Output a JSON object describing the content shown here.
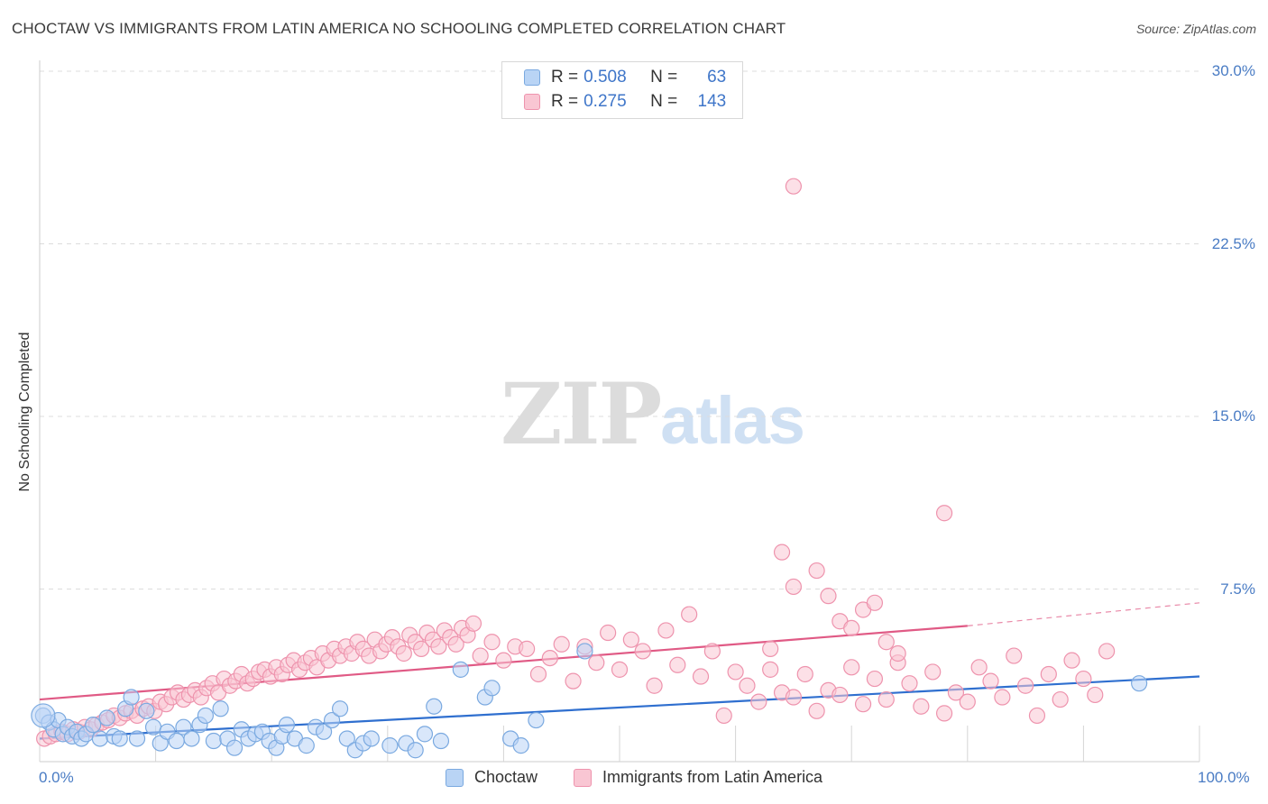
{
  "header": {
    "title": "CHOCTAW VS IMMIGRANTS FROM LATIN AMERICA NO SCHOOLING COMPLETED CORRELATION CHART",
    "source": "Source: ZipAtlas.com"
  },
  "watermark": {
    "zip": "ZIP",
    "atlas": "atlas"
  },
  "legend": {
    "rows": [
      {
        "r_label": "R =",
        "r_value": "0.508",
        "n_label": "N =",
        "n_value": "63",
        "swatch_fill": "#b9d4f5",
        "swatch_border": "#7aa9e0"
      },
      {
        "r_label": "R =",
        "r_value": "0.275",
        "n_label": "N =",
        "n_value": "143",
        "swatch_fill": "#f9c6d3",
        "swatch_border": "#ee93ad"
      }
    ]
  },
  "bottom_legend": {
    "items": [
      {
        "label": "Choctaw",
        "fill": "#b9d4f5",
        "border": "#7aa9e0"
      },
      {
        "label": "Immigrants from Latin America",
        "fill": "#f9c6d3",
        "border": "#ee93ad"
      }
    ]
  },
  "chart_data": {
    "type": "scatter",
    "title": "CHOCTAW VS IMMIGRANTS FROM LATIN AMERICA NO SCHOOLING COMPLETED CORRELATION CHART",
    "xlabel": "",
    "ylabel": "No Schooling Completed",
    "xlim": [
      0,
      100
    ],
    "ylim": [
      0,
      30
    ],
    "x_tick_labels": [
      "0.0%",
      "100.0%"
    ],
    "y_ticks": [
      7.5,
      15.0,
      22.5,
      30.0
    ],
    "y_tick_labels": [
      "7.5%",
      "15.0%",
      "22.5%",
      "30.0%"
    ],
    "grid": true,
    "legend_position": "top-center",
    "series": [
      {
        "name": "Choctaw",
        "color": "#7aa9e0",
        "fill": "#b9d4f5",
        "line_color": "#2f6fcf",
        "trend": {
          "x": [
            0,
            100
          ],
          "y": [
            1.0,
            3.7
          ]
        },
        "points": [
          [
            0.3,
            2.0
          ],
          [
            0.8,
            1.7
          ],
          [
            1.2,
            1.4
          ],
          [
            1.6,
            1.8
          ],
          [
            2.0,
            1.2
          ],
          [
            2.4,
            1.5
          ],
          [
            2.8,
            1.1
          ],
          [
            3.2,
            1.3
          ],
          [
            3.6,
            1.0
          ],
          [
            4.0,
            1.2
          ],
          [
            4.6,
            1.6
          ],
          [
            5.2,
            1.0
          ],
          [
            5.8,
            1.9
          ],
          [
            6.4,
            1.1
          ],
          [
            6.9,
            1.0
          ],
          [
            7.4,
            2.3
          ],
          [
            7.9,
            2.8
          ],
          [
            8.4,
            1.0
          ],
          [
            9.2,
            2.2
          ],
          [
            9.8,
            1.5
          ],
          [
            10.4,
            0.8
          ],
          [
            11.0,
            1.3
          ],
          [
            11.8,
            0.9
          ],
          [
            12.4,
            1.5
          ],
          [
            13.1,
            1.0
          ],
          [
            13.8,
            1.6
          ],
          [
            14.3,
            2.0
          ],
          [
            15.0,
            0.9
          ],
          [
            15.6,
            2.3
          ],
          [
            16.2,
            1.0
          ],
          [
            16.8,
            0.6
          ],
          [
            17.4,
            1.4
          ],
          [
            18.0,
            1.0
          ],
          [
            18.6,
            1.2
          ],
          [
            19.2,
            1.3
          ],
          [
            19.8,
            0.9
          ],
          [
            20.4,
            0.6
          ],
          [
            20.9,
            1.1
          ],
          [
            21.3,
            1.6
          ],
          [
            22.0,
            1.0
          ],
          [
            23.0,
            0.7
          ],
          [
            23.8,
            1.5
          ],
          [
            24.5,
            1.3
          ],
          [
            25.2,
            1.8
          ],
          [
            25.9,
            2.3
          ],
          [
            26.5,
            1.0
          ],
          [
            27.2,
            0.5
          ],
          [
            27.9,
            0.8
          ],
          [
            28.6,
            1.0
          ],
          [
            30.2,
            0.7
          ],
          [
            31.6,
            0.8
          ],
          [
            32.4,
            0.5
          ],
          [
            33.2,
            1.2
          ],
          [
            34.0,
            2.4
          ],
          [
            34.6,
            0.9
          ],
          [
            36.3,
            4.0
          ],
          [
            38.4,
            2.8
          ],
          [
            39.0,
            3.2
          ],
          [
            40.6,
            1.0
          ],
          [
            41.5,
            0.7
          ],
          [
            42.8,
            1.8
          ],
          [
            47.0,
            4.8
          ],
          [
            94.8,
            3.4
          ]
        ]
      },
      {
        "name": "Immigrants from Latin America",
        "color": "#ee93ad",
        "fill": "#f9c6d3",
        "line_color": "#e05a85",
        "trend": {
          "x": [
            0,
            80
          ],
          "y": [
            2.7,
            5.9
          ]
        },
        "trend_extension": {
          "x": [
            80,
            100
          ],
          "y": [
            5.9,
            6.9
          ]
        },
        "points": [
          [
            0.4,
            1.0
          ],
          [
            0.9,
            1.1
          ],
          [
            1.4,
            1.2
          ],
          [
            1.9,
            1.3
          ],
          [
            2.4,
            1.2
          ],
          [
            2.9,
            1.4
          ],
          [
            3.4,
            1.3
          ],
          [
            3.9,
            1.5
          ],
          [
            4.4,
            1.4
          ],
          [
            4.9,
            1.6
          ],
          [
            5.4,
            1.7
          ],
          [
            5.9,
            1.8
          ],
          [
            6.4,
            2.0
          ],
          [
            6.9,
            1.9
          ],
          [
            7.4,
            2.1
          ],
          [
            7.9,
            2.2
          ],
          [
            8.4,
            2.0
          ],
          [
            8.9,
            2.3
          ],
          [
            9.4,
            2.4
          ],
          [
            9.9,
            2.2
          ],
          [
            10.4,
            2.6
          ],
          [
            10.9,
            2.5
          ],
          [
            11.4,
            2.8
          ],
          [
            11.9,
            3.0
          ],
          [
            12.4,
            2.7
          ],
          [
            12.9,
            2.9
          ],
          [
            13.4,
            3.1
          ],
          [
            13.9,
            2.8
          ],
          [
            14.4,
            3.2
          ],
          [
            14.9,
            3.4
          ],
          [
            15.4,
            3.0
          ],
          [
            15.9,
            3.6
          ],
          [
            16.4,
            3.3
          ],
          [
            16.9,
            3.5
          ],
          [
            17.4,
            3.8
          ],
          [
            17.9,
            3.4
          ],
          [
            18.4,
            3.6
          ],
          [
            18.9,
            3.9
          ],
          [
            19.4,
            4.0
          ],
          [
            19.9,
            3.7
          ],
          [
            20.4,
            4.1
          ],
          [
            20.9,
            3.8
          ],
          [
            21.4,
            4.2
          ],
          [
            21.9,
            4.4
          ],
          [
            22.4,
            4.0
          ],
          [
            22.9,
            4.3
          ],
          [
            23.4,
            4.5
          ],
          [
            23.9,
            4.1
          ],
          [
            24.4,
            4.7
          ],
          [
            24.9,
            4.4
          ],
          [
            25.4,
            4.9
          ],
          [
            25.9,
            4.6
          ],
          [
            26.4,
            5.0
          ],
          [
            26.9,
            4.7
          ],
          [
            27.4,
            5.2
          ],
          [
            27.9,
            4.9
          ],
          [
            28.4,
            4.6
          ],
          [
            28.9,
            5.3
          ],
          [
            29.4,
            4.8
          ],
          [
            29.9,
            5.1
          ],
          [
            30.4,
            5.4
          ],
          [
            30.9,
            5.0
          ],
          [
            31.4,
            4.7
          ],
          [
            31.9,
            5.5
          ],
          [
            32.4,
            5.2
          ],
          [
            32.9,
            4.9
          ],
          [
            33.4,
            5.6
          ],
          [
            33.9,
            5.3
          ],
          [
            34.4,
            5.0
          ],
          [
            34.9,
            5.7
          ],
          [
            35.4,
            5.4
          ],
          [
            35.9,
            5.1
          ],
          [
            36.4,
            5.8
          ],
          [
            36.9,
            5.5
          ],
          [
            37.4,
            6.0
          ],
          [
            38.0,
            4.6
          ],
          [
            39.0,
            5.2
          ],
          [
            40.0,
            4.4
          ],
          [
            41.0,
            5.0
          ],
          [
            42.0,
            4.9
          ],
          [
            43.0,
            3.8
          ],
          [
            44.0,
            4.5
          ],
          [
            45.0,
            5.1
          ],
          [
            46.0,
            3.5
          ],
          [
            47.0,
            5.0
          ],
          [
            48.0,
            4.3
          ],
          [
            49.0,
            5.6
          ],
          [
            50.0,
            4.0
          ],
          [
            51.0,
            5.3
          ],
          [
            52.0,
            4.8
          ],
          [
            53.0,
            3.3
          ],
          [
            54.0,
            5.7
          ],
          [
            55.0,
            4.2
          ],
          [
            56.0,
            6.4
          ],
          [
            57.0,
            3.7
          ],
          [
            58.0,
            4.8
          ],
          [
            59.0,
            2.0
          ],
          [
            60.0,
            3.9
          ],
          [
            61.0,
            3.3
          ],
          [
            62.0,
            2.6
          ],
          [
            63.0,
            4.9
          ],
          [
            64.0,
            3.0
          ],
          [
            65.0,
            2.8
          ],
          [
            66.0,
            3.8
          ],
          [
            67.0,
            2.2
          ],
          [
            68.0,
            3.1
          ],
          [
            69.0,
            2.9
          ],
          [
            70.0,
            4.1
          ],
          [
            71.0,
            2.5
          ],
          [
            72.0,
            3.6
          ],
          [
            73.0,
            2.7
          ],
          [
            74.0,
            4.3
          ],
          [
            75.0,
            3.4
          ],
          [
            76.0,
            2.4
          ],
          [
            77.0,
            3.9
          ],
          [
            78.0,
            2.1
          ],
          [
            79.0,
            3.0
          ],
          [
            80.0,
            2.6
          ],
          [
            81.0,
            4.1
          ],
          [
            82.0,
            3.5
          ],
          [
            83.0,
            2.8
          ],
          [
            84.0,
            4.6
          ],
          [
            85.0,
            3.3
          ],
          [
            86.0,
            2.0
          ],
          [
            87.0,
            3.8
          ],
          [
            88.0,
            2.7
          ],
          [
            89.0,
            4.4
          ],
          [
            90.0,
            3.6
          ],
          [
            91.0,
            2.9
          ],
          [
            92.0,
            4.8
          ],
          [
            64.0,
            9.1
          ],
          [
            65.0,
            7.6
          ],
          [
            67.0,
            8.3
          ],
          [
            68.0,
            7.2
          ],
          [
            69.0,
            6.1
          ],
          [
            70.0,
            5.8
          ],
          [
            71.0,
            6.6
          ],
          [
            72.0,
            6.9
          ],
          [
            73.0,
            5.2
          ],
          [
            74.0,
            4.7
          ],
          [
            65.0,
            25.0
          ],
          [
            78.0,
            10.8
          ],
          [
            63.0,
            4.0
          ]
        ]
      }
    ]
  }
}
